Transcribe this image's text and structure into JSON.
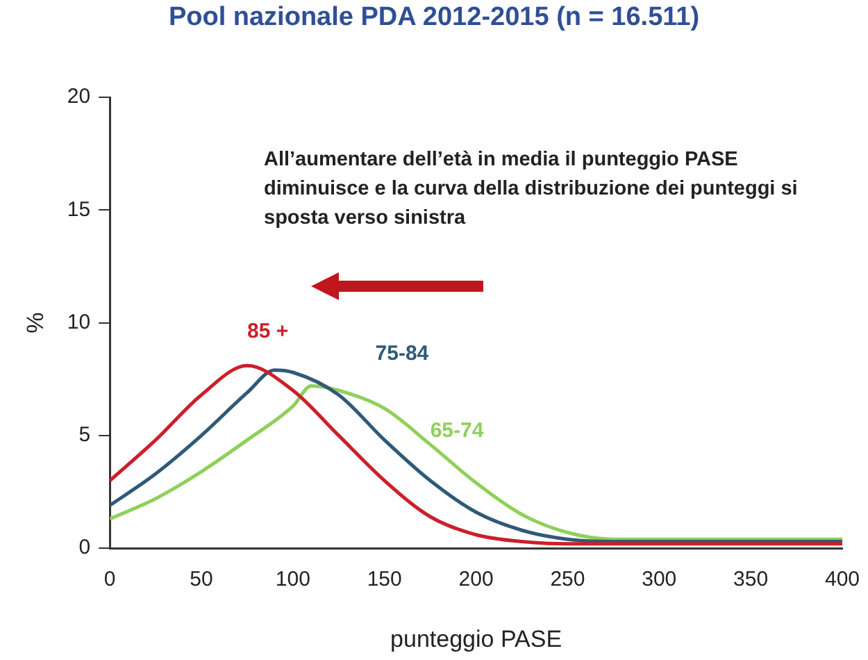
{
  "chart_data": {
    "type": "line",
    "title": "Pool nazionale PDA 2012-2015 (n = 16.511)",
    "xlabel": "punteggio PASE",
    "ylabel": "%",
    "xlim": [
      0,
      400
    ],
    "xticks": [
      0,
      50,
      100,
      150,
      200,
      250,
      300,
      350,
      400
    ],
    "ylim": [
      0,
      20
    ],
    "yticks": [
      0,
      5,
      10,
      15,
      20
    ],
    "grid": false,
    "legend": false,
    "marker": "none",
    "line_style": "solid",
    "annotations": [
      "All’aumentare dell’età in media il punteggio PASE diminuisce e la curva della distribuzione dei punteggi si sposta verso sinistra"
    ],
    "series": [
      {
        "name": "85 +",
        "color": "#cc1f2a",
        "x": [
          0,
          25,
          50,
          75,
          100,
          125,
          150,
          175,
          200,
          225,
          250,
          300,
          400
        ],
        "values": [
          3.0,
          4.8,
          6.8,
          8.1,
          7.0,
          5.0,
          3.0,
          1.4,
          0.6,
          0.3,
          0.2,
          0.2,
          0.2
        ]
      },
      {
        "name": "75-84",
        "color": "#2e5a78",
        "x": [
          0,
          25,
          50,
          75,
          90,
          100,
          125,
          150,
          175,
          200,
          225,
          250,
          275,
          400
        ],
        "values": [
          1.9,
          3.3,
          5.0,
          6.9,
          7.9,
          7.8,
          6.8,
          4.8,
          3.0,
          1.6,
          0.8,
          0.4,
          0.3,
          0.3
        ]
      },
      {
        "name": "65-74",
        "color": "#8fd05a",
        "x": [
          0,
          25,
          50,
          75,
          100,
          110,
          125,
          150,
          175,
          200,
          225,
          250,
          275,
          400
        ],
        "values": [
          1.3,
          2.2,
          3.4,
          4.8,
          6.3,
          7.2,
          7.0,
          6.2,
          4.6,
          2.9,
          1.5,
          0.7,
          0.4,
          0.4
        ]
      }
    ]
  }
}
